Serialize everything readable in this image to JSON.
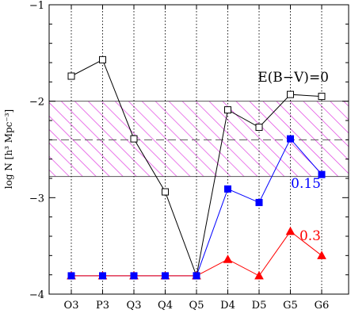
{
  "chart_data": {
    "type": "line",
    "ylabel": "log N [h³ Mpc⁻³]",
    "categories": [
      "O3",
      "P3",
      "Q3",
      "Q4",
      "Q5",
      "D4",
      "D5",
      "G5",
      "G6"
    ],
    "ylim": [
      -4,
      -1
    ],
    "yticks": [
      {
        "value": -1,
        "label": "−1"
      },
      {
        "value": -2,
        "label": "−2"
      },
      {
        "value": -3,
        "label": "−3"
      },
      {
        "value": -4,
        "label": "−4"
      }
    ],
    "grid": "vertical dotted lines at each category",
    "band": {
      "y_low": -2.78,
      "y_high": -2.0,
      "y_mid": -2.4,
      "color": "#e040e0"
    },
    "series": [
      {
        "name": "E(B−V)=0",
        "color": "#000000",
        "marker": "open-square",
        "values": [
          -1.74,
          -1.57,
          -2.39,
          -2.94,
          -3.81,
          -2.09,
          -2.27,
          -1.93,
          -1.95
        ]
      },
      {
        "name": "0.15",
        "color": "#0000ff",
        "marker": "filled-square",
        "values": [
          -3.81,
          -3.81,
          -3.81,
          -3.81,
          -3.81,
          -2.91,
          -3.05,
          -2.39,
          -2.76
        ]
      },
      {
        "name": "0.3",
        "color": "#ff0000",
        "marker": "filled-triangle",
        "values": [
          -3.81,
          -3.81,
          -3.81,
          -3.81,
          -3.81,
          -3.64,
          -3.81,
          -3.35,
          -3.6
        ]
      }
    ]
  }
}
